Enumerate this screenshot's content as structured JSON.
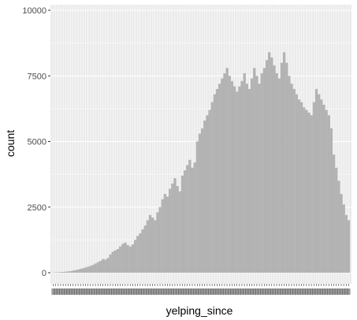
{
  "chart_data": {
    "type": "bar",
    "xlabel": "yelping_since",
    "ylabel": "count",
    "ylim": [
      0,
      10000
    ],
    "y_ticks": [
      0,
      2500,
      5000,
      7500,
      10000
    ],
    "y_tick_labels": [
      "0",
      "2500",
      "5000",
      "7500",
      "10000"
    ],
    "grid": true,
    "legend": "none",
    "x_tick_labels_note": "x tick labels are overplotted and illegible in the original",
    "values": [
      10,
      15,
      20,
      25,
      30,
      40,
      50,
      60,
      80,
      100,
      120,
      150,
      170,
      200,
      230,
      260,
      300,
      350,
      400,
      450,
      520,
      500,
      560,
      700,
      800,
      850,
      900,
      1000,
      1100,
      1150,
      1050,
      1000,
      1080,
      1250,
      1400,
      1500,
      1650,
      1800,
      2000,
      2200,
      2100,
      2000,
      2300,
      2500,
      2800,
      3000,
      2900,
      3200,
      3400,
      3600,
      3300,
      3100,
      3700,
      3900,
      4100,
      4300,
      4000,
      4200,
      5000,
      5300,
      5500,
      5800,
      6000,
      6200,
      6500,
      6800,
      7000,
      7200,
      7400,
      7600,
      7800,
      7500,
      7300,
      7100,
      6900,
      7100,
      7300,
      7600,
      7200,
      7000,
      7400,
      7800,
      7500,
      7200,
      7600,
      7800,
      8100,
      8400,
      8200,
      7900,
      7600,
      7400,
      8000,
      8400,
      8000,
      7500,
      7200,
      7000,
      6800,
      6600,
      6500,
      6300,
      6200,
      6100,
      6000,
      6500,
      7000,
      6800,
      6600,
      6400,
      6200,
      6000,
      5500,
      4500,
      4000,
      3500,
      3000,
      2600,
      2200,
      2000
    ]
  },
  "colors": {
    "panel_bg": "#ebebeb",
    "grid": "#ffffff",
    "bar": "#b3b3b3"
  }
}
